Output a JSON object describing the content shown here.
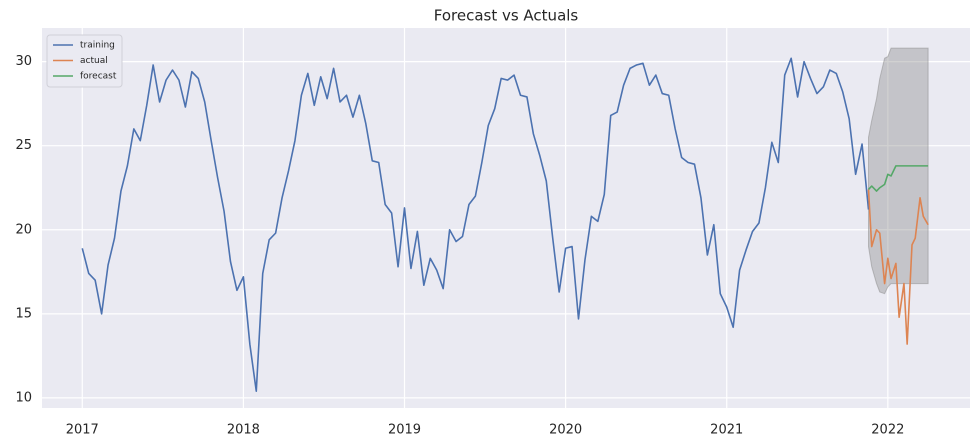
{
  "chart_data": {
    "type": "line",
    "title": "Forecast vs Actuals",
    "xlim": [
      2016.75,
      2022.51
    ],
    "xticks": [
      2017,
      2018,
      2019,
      2020,
      2021,
      2022
    ],
    "ylim": [
      9.4,
      32
    ],
    "yticks": [
      10,
      15,
      20,
      25,
      30
    ],
    "grid": true,
    "legend": "upper left",
    "series": [
      {
        "name": "training",
        "color": "#4c72b0",
        "x": [
          2017.0,
          2017.04,
          2017.08,
          2017.12,
          2017.16,
          2017.2,
          2017.24,
          2017.28,
          2017.32,
          2017.36,
          2017.4,
          2017.44,
          2017.48,
          2017.52,
          2017.56,
          2017.6,
          2017.64,
          2017.68,
          2017.72,
          2017.76,
          2017.8,
          2017.84,
          2017.88,
          2017.92,
          2017.96,
          2018.0,
          2018.04,
          2018.08,
          2018.12,
          2018.16,
          2018.2,
          2018.24,
          2018.28,
          2018.32,
          2018.36,
          2018.4,
          2018.44,
          2018.48,
          2018.52,
          2018.56,
          2018.6,
          2018.64,
          2018.68,
          2018.72,
          2018.76,
          2018.8,
          2018.84,
          2018.88,
          2018.92,
          2018.96,
          2019.0,
          2019.04,
          2019.08,
          2019.12,
          2019.16,
          2019.2,
          2019.24,
          2019.28,
          2019.32,
          2019.36,
          2019.4,
          2019.44,
          2019.48,
          2019.52,
          2019.56,
          2019.6,
          2019.64,
          2019.68,
          2019.72,
          2019.76,
          2019.8,
          2019.84,
          2019.88,
          2019.92,
          2019.96,
          2020.0,
          2020.04,
          2020.08,
          2020.12,
          2020.16,
          2020.2,
          2020.24,
          2020.28,
          2020.32,
          2020.36,
          2020.4,
          2020.44,
          2020.48,
          2020.52,
          2020.56,
          2020.6,
          2020.64,
          2020.68,
          2020.72,
          2020.76,
          2020.8,
          2020.84,
          2020.88,
          2020.92,
          2020.96,
          2021.0,
          2021.04,
          2021.08,
          2021.12,
          2021.16,
          2021.2,
          2021.24,
          2021.28,
          2021.32,
          2021.36,
          2021.4,
          2021.44,
          2021.48,
          2021.52,
          2021.56,
          2021.6,
          2021.64,
          2021.68,
          2021.72,
          2021.76,
          2021.8,
          2021.84,
          2021.88
        ],
        "values": [
          18.9,
          17.4,
          17.0,
          15.0,
          17.9,
          19.5,
          22.3,
          23.8,
          26.0,
          25.3,
          27.4,
          29.8,
          27.6,
          28.9,
          29.5,
          28.9,
          27.3,
          29.4,
          29.0,
          27.6,
          25.3,
          23.1,
          21.1,
          18.1,
          16.4,
          17.2,
          13.2,
          10.4,
          17.4,
          19.4,
          19.8,
          21.9,
          23.5,
          25.3,
          28.0,
          29.3,
          27.4,
          29.1,
          27.8,
          29.6,
          27.6,
          28.0,
          26.7,
          28.0,
          26.3,
          24.1,
          24.0,
          21.5,
          21.0,
          17.8,
          21.3,
          17.7,
          19.9,
          16.7,
          18.3,
          17.6,
          16.5,
          20.0,
          19.3,
          19.6,
          21.5,
          22.0,
          24.0,
          26.2,
          27.2,
          29.0,
          28.9,
          29.2,
          28.0,
          27.9,
          25.7,
          24.4,
          22.9,
          19.5,
          16.3,
          18.9,
          19.0,
          14.7,
          18.2,
          20.8,
          20.5,
          22.1,
          26.8,
          27.0,
          28.6,
          29.6,
          29.8,
          29.9,
          28.6,
          29.2,
          28.1,
          28.0,
          26.0,
          24.3,
          24.0,
          23.9,
          21.9,
          18.5,
          20.3,
          16.2,
          15.4,
          14.2,
          17.6,
          18.8,
          19.9,
          20.4,
          22.5,
          25.2,
          24.0,
          29.2,
          30.2,
          27.9,
          30.0,
          29.0,
          28.1,
          28.5,
          29.5,
          29.3,
          28.2,
          26.6,
          23.3,
          25.1,
          21.2
        ]
      },
      {
        "name": "actual",
        "color": "#dd8452",
        "x": [
          2021.88,
          2021.9,
          2021.93,
          2021.95,
          2021.98,
          2022.0,
          2022.02,
          2022.05,
          2022.07,
          2022.1,
          2022.12,
          2022.15,
          2022.17,
          2022.2,
          2022.22,
          2022.25
        ],
        "values": [
          22.4,
          19.0,
          20.0,
          19.8,
          16.8,
          18.3,
          17.1,
          18.0,
          14.8,
          16.8,
          13.2,
          19.1,
          19.5,
          21.9,
          20.8,
          20.3
        ]
      },
      {
        "name": "forecast",
        "color": "#55a868",
        "x": [
          2021.88,
          2021.9,
          2021.93,
          2021.95,
          2021.98,
          2022.0,
          2022.02,
          2022.05,
          2022.07,
          2022.1,
          2022.12,
          2022.15,
          2022.17,
          2022.2,
          2022.22,
          2022.25
        ],
        "values": [
          22.4,
          22.6,
          22.3,
          22.5,
          22.7,
          23.3,
          23.2,
          23.8,
          23.8,
          23.8,
          23.8,
          23.8,
          23.8,
          23.8,
          23.8,
          23.8
        ]
      }
    ],
    "interval": {
      "color": "#8c8c8c",
      "x": [
        2021.88,
        2021.9,
        2021.93,
        2021.95,
        2021.98,
        2022.0,
        2022.02,
        2022.05,
        2022.07,
        2022.1,
        2022.12,
        2022.15,
        2022.17,
        2022.2,
        2022.22,
        2022.25
      ],
      "lower": [
        19.0,
        17.8,
        16.8,
        16.3,
        16.2,
        16.6,
        16.8,
        16.8,
        16.8,
        16.8,
        16.8,
        16.8,
        16.8,
        16.8,
        16.8,
        16.8
      ],
      "upper": [
        25.5,
        26.5,
        27.8,
        29.0,
        30.2,
        30.3,
        30.8,
        30.8,
        30.8,
        30.8,
        30.8,
        30.8,
        30.8,
        30.8,
        30.8,
        30.8
      ]
    }
  }
}
